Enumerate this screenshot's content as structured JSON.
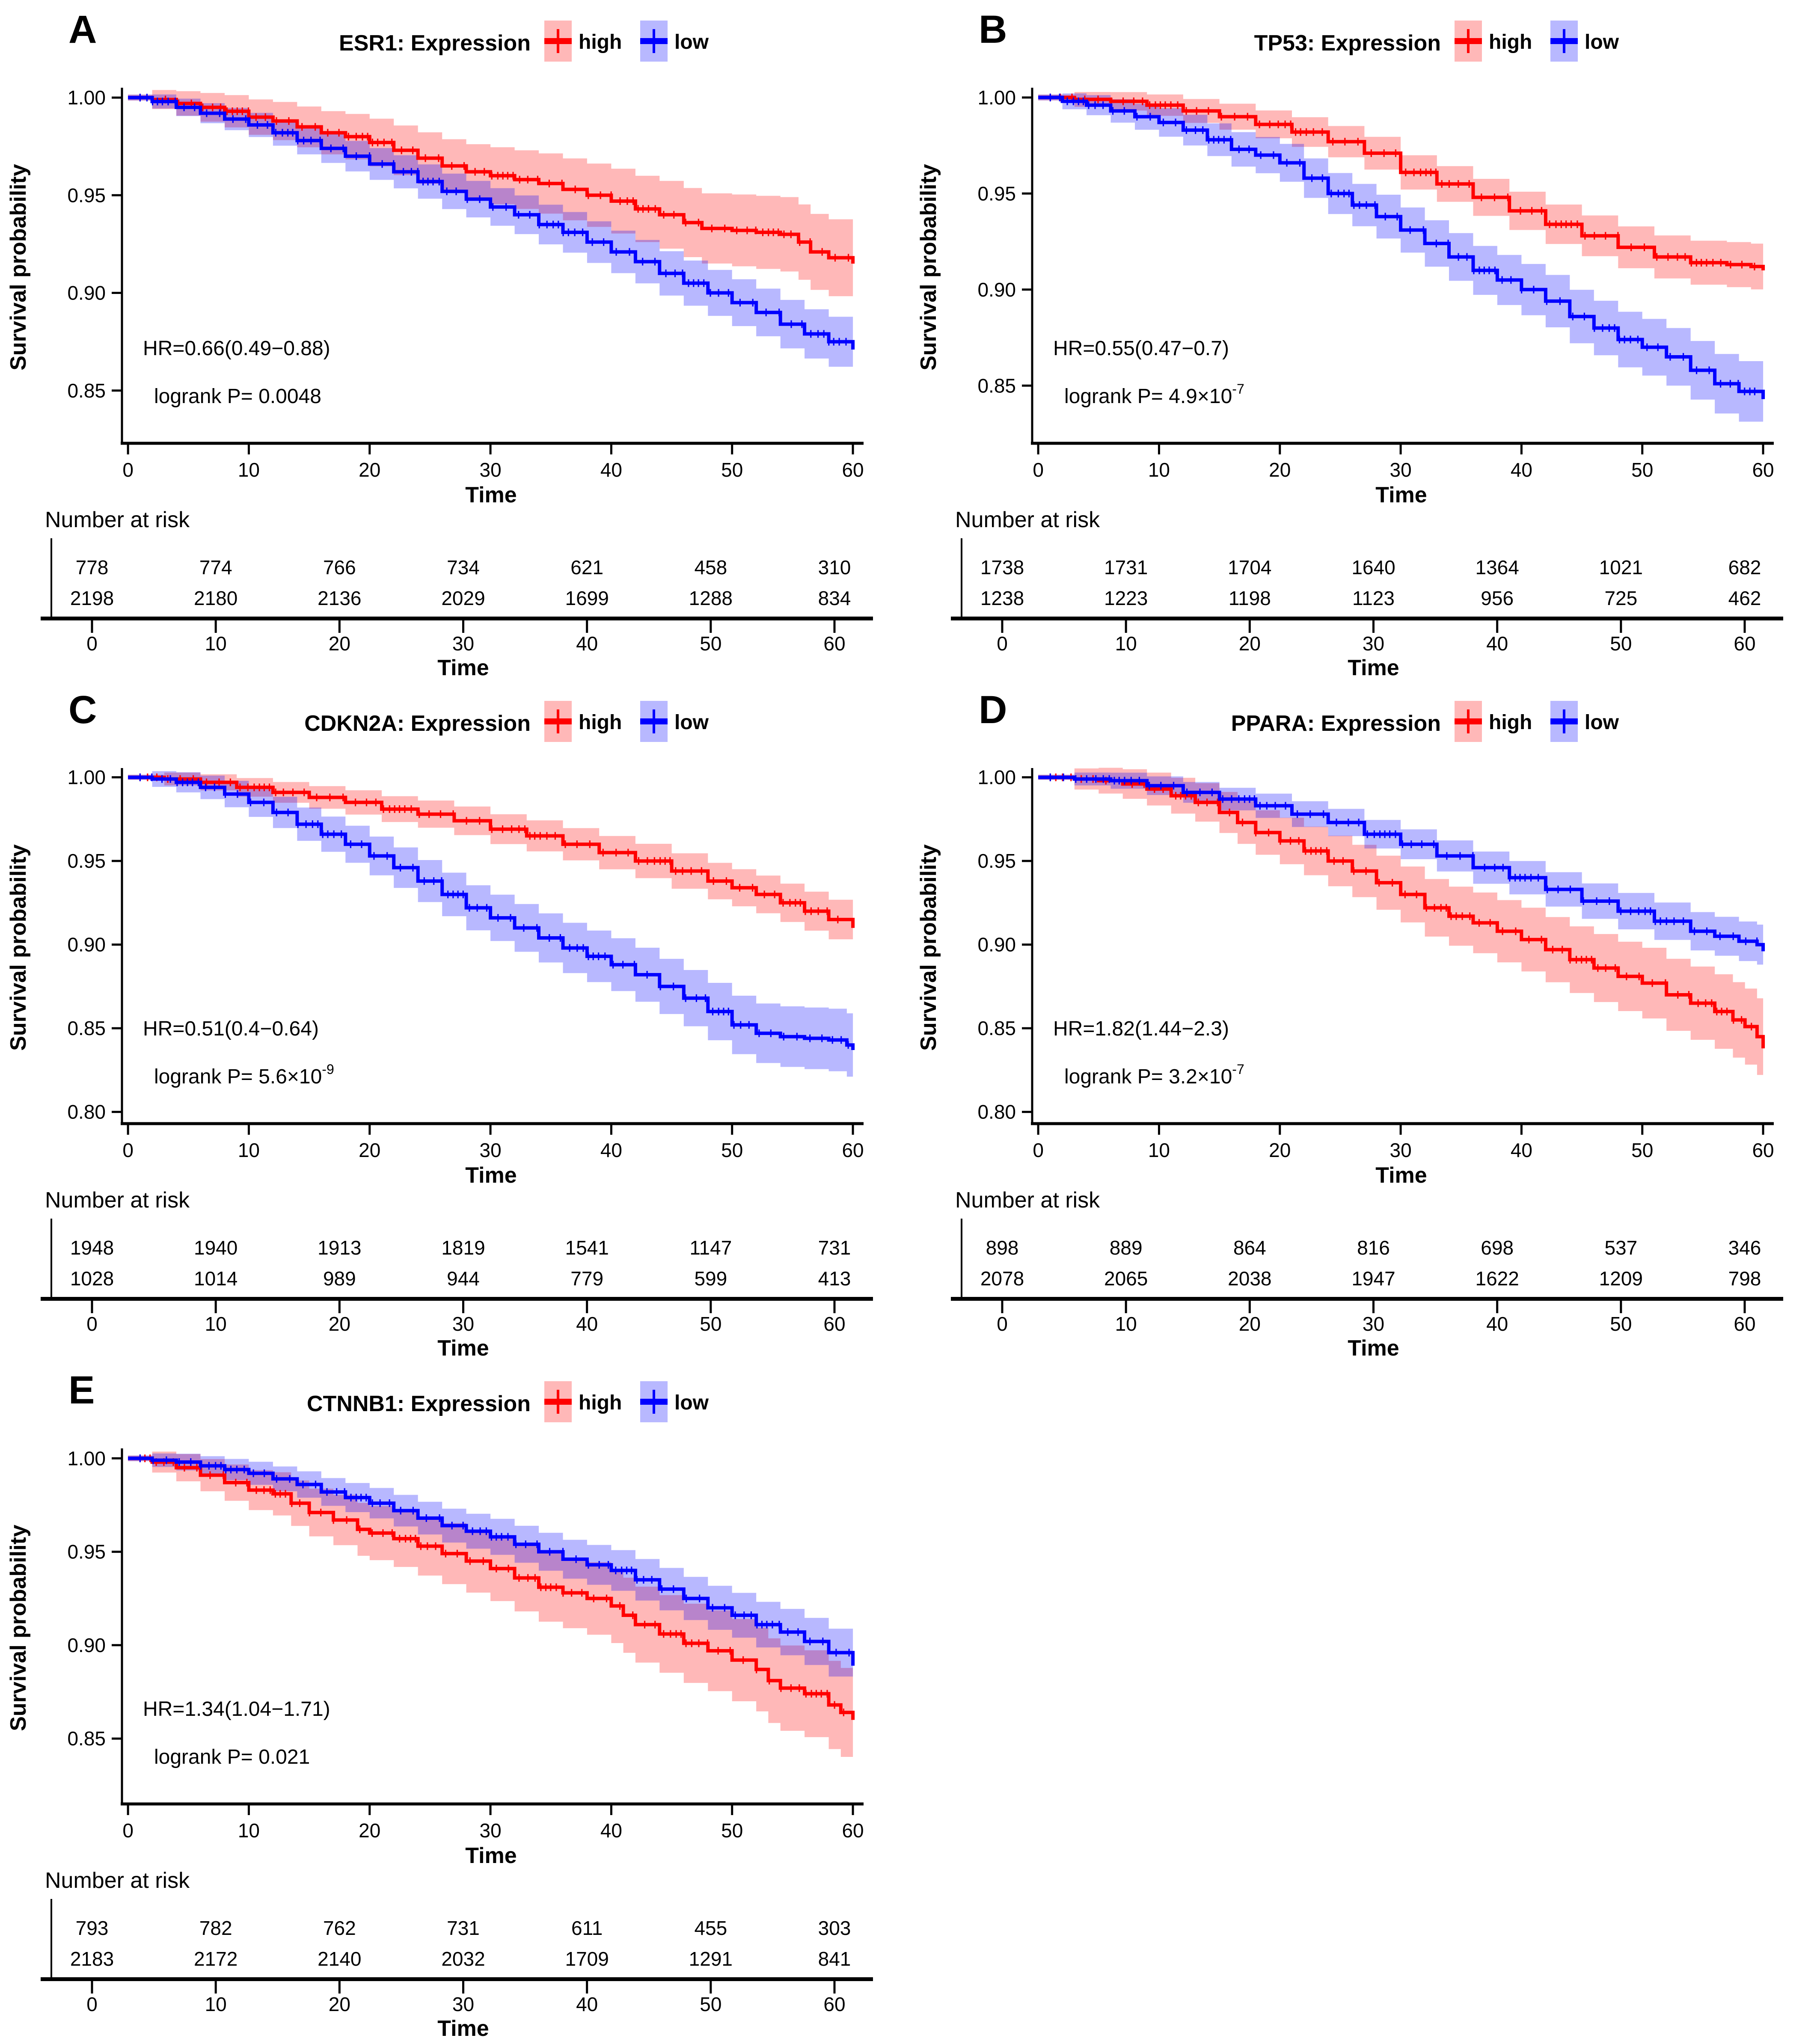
{
  "figure": {
    "number_at_risk_label": "Number at risk",
    "time_axis_label": "Time",
    "y_axis_label": "Survival probability",
    "legend": {
      "high_label": "high",
      "low_label": "low"
    },
    "colors": {
      "high": "#ff0000",
      "low": "#0000ff",
      "band_opacity": 0.28,
      "axis": "#000000"
    }
  },
  "chart_data": [
    {
      "type": "line",
      "panel_letter": "A",
      "title": "ESR1: Expression",
      "hr_label": "HR=0.66(0.49−0.88)",
      "logrank_label": "logrank P= 0.0048",
      "logrank_sup": "",
      "xlabel": "Time",
      "ylabel": "Survival probability",
      "xlim": [
        -0.5,
        60.6
      ],
      "ylim": [
        0.823,
        1.0033
      ],
      "x_ticks": [
        0,
        10,
        20,
        30,
        40,
        50,
        60
      ],
      "y_ticks": [
        {
          "v": 1.0,
          "label": "1.00"
        },
        {
          "v": 0.95,
          "label": "0.95"
        },
        {
          "v": 0.9,
          "label": "0.90"
        },
        {
          "v": 0.85,
          "label": "0.85"
        }
      ],
      "legend_position": "top",
      "grid": false,
      "series": [
        {
          "name": "high",
          "color": "#ff0000",
          "ci_end": 0.02,
          "x": [
            0,
            2,
            4,
            6,
            8,
            10,
            12,
            14,
            16,
            18,
            20,
            22,
            24,
            26,
            28,
            30,
            32,
            34,
            36,
            38,
            40,
            42,
            44,
            46,
            47.5,
            50,
            52,
            54,
            55.5,
            56.5,
            58,
            60
          ],
          "y": [
            1.0,
            0.999,
            0.997,
            0.995,
            0.993,
            0.99,
            0.988,
            0.985,
            0.982,
            0.98,
            0.977,
            0.973,
            0.969,
            0.965,
            0.962,
            0.96,
            0.958,
            0.956,
            0.953,
            0.95,
            0.947,
            0.943,
            0.94,
            0.936,
            0.933,
            0.932,
            0.931,
            0.93,
            0.926,
            0.921,
            0.918,
            0.915
          ],
          "number_at_risk": [
            778,
            774,
            766,
            734,
            621,
            458,
            310
          ]
        },
        {
          "name": "low",
          "color": "#0000ff",
          "ci_end": 0.013,
          "x": [
            0,
            2,
            4,
            6,
            8,
            10,
            12,
            14,
            16,
            18,
            20,
            22,
            24,
            26,
            28,
            30,
            32,
            34,
            36,
            38,
            40,
            42,
            44,
            46,
            48,
            50,
            52,
            54,
            56,
            58,
            60
          ],
          "y": [
            1.0,
            0.998,
            0.995,
            0.992,
            0.989,
            0.986,
            0.982,
            0.978,
            0.974,
            0.97,
            0.966,
            0.962,
            0.957,
            0.952,
            0.948,
            0.944,
            0.94,
            0.935,
            0.931,
            0.926,
            0.921,
            0.916,
            0.91,
            0.905,
            0.9,
            0.895,
            0.89,
            0.884,
            0.879,
            0.875,
            0.871
          ],
          "number_at_risk": [
            2198,
            2180,
            2136,
            2029,
            1699,
            1288,
            834
          ]
        }
      ]
    },
    {
      "type": "line",
      "panel_letter": "B",
      "title": "TP53: Expression",
      "hr_label": "HR=0.55(0.47−0.7)",
      "logrank_label": "logrank P= 4.9×10",
      "logrank_sup": "-7",
      "xlabel": "Time",
      "ylabel": "Survival probability",
      "xlim": [
        -0.5,
        60.6
      ],
      "ylim": [
        0.82,
        1.0033
      ],
      "x_ticks": [
        0,
        10,
        20,
        30,
        40,
        50,
        60
      ],
      "y_ticks": [
        {
          "v": 1.0,
          "label": "1.00"
        },
        {
          "v": 0.95,
          "label": "0.95"
        },
        {
          "v": 0.9,
          "label": "0.90"
        },
        {
          "v": 0.85,
          "label": "0.85"
        }
      ],
      "legend_position": "top",
      "grid": false,
      "series": [
        {
          "name": "high",
          "color": "#ff0000",
          "ci_end": 0.012,
          "x": [
            0,
            3,
            6,
            9,
            12,
            15,
            18,
            21,
            24,
            27,
            30,
            33,
            36,
            39,
            42,
            45,
            48,
            51,
            54,
            57,
            59,
            60
          ],
          "y": [
            1.0,
            0.999,
            0.998,
            0.996,
            0.993,
            0.99,
            0.986,
            0.982,
            0.977,
            0.971,
            0.961,
            0.955,
            0.948,
            0.941,
            0.934,
            0.928,
            0.922,
            0.917,
            0.914,
            0.913,
            0.912,
            0.91
          ],
          "number_at_risk": [
            1738,
            1731,
            1704,
            1640,
            1364,
            1021,
            682
          ]
        },
        {
          "name": "low",
          "color": "#0000ff",
          "ci_end": 0.016,
          "x": [
            0,
            2,
            4,
            6,
            8,
            10,
            12,
            14,
            16,
            18,
            20,
            22,
            24,
            26,
            28,
            30,
            32,
            34,
            36,
            38,
            40,
            42,
            44,
            46,
            48,
            50,
            52,
            54,
            56,
            58,
            60
          ],
          "y": [
            1.0,
            0.998,
            0.996,
            0.993,
            0.99,
            0.987,
            0.983,
            0.978,
            0.973,
            0.97,
            0.966,
            0.958,
            0.95,
            0.944,
            0.938,
            0.931,
            0.924,
            0.917,
            0.91,
            0.905,
            0.9,
            0.894,
            0.886,
            0.88,
            0.874,
            0.87,
            0.865,
            0.858,
            0.851,
            0.847,
            0.843
          ],
          "number_at_risk": [
            1238,
            1223,
            1198,
            1123,
            956,
            725,
            462
          ]
        }
      ]
    },
    {
      "type": "line",
      "panel_letter": "C",
      "title": "CDKN2A: Expression",
      "hr_label": "HR=0.51(0.4−0.64)",
      "logrank_label": "logrank P= 5.6×10",
      "logrank_sup": "-9",
      "xlabel": "Time",
      "ylabel": "Survival probability",
      "xlim": [
        -0.5,
        60.6
      ],
      "ylim": [
        0.793,
        1.0035
      ],
      "x_ticks": [
        0,
        10,
        20,
        30,
        40,
        50,
        60
      ],
      "y_ticks": [
        {
          "v": 1.0,
          "label": "1.00"
        },
        {
          "v": 0.95,
          "label": "0.95"
        },
        {
          "v": 0.9,
          "label": "0.90"
        },
        {
          "v": 0.85,
          "label": "0.85"
        },
        {
          "v": 0.8,
          "label": "0.80"
        }
      ],
      "legend_position": "top",
      "grid": false,
      "series": [
        {
          "name": "high",
          "color": "#ff0000",
          "ci_end": 0.012,
          "x": [
            0,
            3,
            6,
            9,
            12,
            15,
            18,
            21,
            24,
            27,
            30,
            33,
            36,
            39,
            42,
            45,
            48,
            50,
            52,
            54,
            56,
            58,
            60
          ],
          "y": [
            1.0,
            0.999,
            0.997,
            0.994,
            0.991,
            0.988,
            0.985,
            0.981,
            0.978,
            0.974,
            0.969,
            0.965,
            0.96,
            0.955,
            0.95,
            0.944,
            0.938,
            0.934,
            0.93,
            0.925,
            0.92,
            0.915,
            0.91
          ],
          "number_at_risk": [
            1948,
            1940,
            1913,
            1819,
            1541,
            1147,
            731
          ]
        },
        {
          "name": "low",
          "color": "#0000ff",
          "ci_end": 0.019,
          "x": [
            0,
            2,
            4,
            6,
            8,
            10,
            12,
            14,
            16,
            18,
            20,
            22,
            24,
            26,
            28,
            30,
            32,
            34,
            36,
            38,
            40,
            42,
            44,
            46,
            48,
            50,
            52,
            54,
            56,
            58,
            59.5,
            60
          ],
          "y": [
            1.0,
            0.999,
            0.997,
            0.994,
            0.99,
            0.985,
            0.979,
            0.972,
            0.966,
            0.96,
            0.953,
            0.946,
            0.938,
            0.93,
            0.922,
            0.916,
            0.91,
            0.904,
            0.898,
            0.893,
            0.888,
            0.882,
            0.875,
            0.868,
            0.86,
            0.852,
            0.847,
            0.845,
            0.844,
            0.843,
            0.84,
            0.837
          ],
          "number_at_risk": [
            1028,
            1014,
            989,
            944,
            779,
            599,
            413
          ]
        }
      ]
    },
    {
      "type": "line",
      "panel_letter": "D",
      "title": "PPARA: Expression",
      "hr_label": "HR=1.82(1.44−2.3)",
      "logrank_label": "logrank P= 3.2×10",
      "logrank_sup": "-7",
      "xlabel": "Time",
      "ylabel": "Survival probability",
      "xlim": [
        -0.5,
        60.6
      ],
      "ylim": [
        0.793,
        1.0035
      ],
      "x_ticks": [
        0,
        10,
        20,
        30,
        40,
        50,
        60
      ],
      "y_ticks": [
        {
          "v": 1.0,
          "label": "1.00"
        },
        {
          "v": 0.95,
          "label": "0.95"
        },
        {
          "v": 0.9,
          "label": "0.90"
        },
        {
          "v": 0.85,
          "label": "0.85"
        },
        {
          "v": 0.8,
          "label": "0.80"
        }
      ],
      "legend_position": "top",
      "grid": false,
      "series": [
        {
          "name": "high",
          "color": "#ff0000",
          "ci_end": 0.023,
          "x": [
            0,
            3,
            5,
            7,
            9,
            11,
            13,
            15,
            16.5,
            18,
            20,
            22,
            24,
            26,
            28,
            30,
            32,
            34,
            36,
            38,
            40,
            42,
            44,
            46,
            48,
            50,
            52,
            54,
            56,
            57.5,
            58.5,
            59.5,
            60
          ],
          "y": [
            1.0,
            0.999,
            0.998,
            0.996,
            0.993,
            0.989,
            0.985,
            0.979,
            0.973,
            0.967,
            0.962,
            0.956,
            0.95,
            0.944,
            0.937,
            0.93,
            0.922,
            0.917,
            0.913,
            0.908,
            0.903,
            0.897,
            0.891,
            0.886,
            0.881,
            0.877,
            0.87,
            0.865,
            0.86,
            0.855,
            0.851,
            0.845,
            0.838
          ],
          "number_at_risk": [
            898,
            889,
            864,
            816,
            698,
            537,
            346
          ]
        },
        {
          "name": "low",
          "color": "#0000ff",
          "ci_end": 0.012,
          "x": [
            0,
            3,
            6,
            9,
            12,
            15,
            18,
            21,
            24,
            27,
            30,
            33,
            36,
            39,
            42,
            45,
            48,
            51,
            54,
            56,
            58,
            59.5,
            60
          ],
          "y": [
            1.0,
            0.999,
            0.998,
            0.995,
            0.991,
            0.987,
            0.983,
            0.978,
            0.973,
            0.966,
            0.96,
            0.953,
            0.946,
            0.94,
            0.933,
            0.926,
            0.92,
            0.914,
            0.908,
            0.905,
            0.902,
            0.9,
            0.896
          ],
          "number_at_risk": [
            2078,
            2065,
            2038,
            1947,
            1622,
            1209,
            798
          ]
        }
      ]
    },
    {
      "type": "line",
      "panel_letter": "E",
      "title": "CTNNB1: Expression",
      "hr_label": "HR=1.34(1.04−1.71)",
      "logrank_label": "logrank P= 0.021",
      "logrank_sup": "",
      "xlabel": "Time",
      "ylabel": "Survival probability",
      "xlim": [
        -0.5,
        60.6
      ],
      "ylim": [
        0.815,
        1.0035
      ],
      "x_ticks": [
        0,
        10,
        20,
        30,
        40,
        50,
        60
      ],
      "y_ticks": [
        {
          "v": 1.0,
          "label": "1.00"
        },
        {
          "v": 0.95,
          "label": "0.95"
        },
        {
          "v": 0.9,
          "label": "0.90"
        },
        {
          "v": 0.85,
          "label": "0.85"
        }
      ],
      "legend_position": "top",
      "grid": false,
      "series": [
        {
          "name": "high",
          "color": "#ff0000",
          "ci_end": 0.024,
          "x": [
            0,
            2,
            4,
            6,
            8,
            10,
            12,
            13.5,
            15,
            17,
            19,
            20,
            22,
            24,
            26,
            28,
            30,
            32,
            34,
            36,
            38,
            40,
            41,
            42,
            44,
            46,
            48,
            50,
            52,
            53,
            54,
            56,
            58,
            59,
            60
          ],
          "y": [
            1.0,
            0.998,
            0.995,
            0.991,
            0.987,
            0.983,
            0.981,
            0.976,
            0.971,
            0.967,
            0.962,
            0.96,
            0.957,
            0.953,
            0.949,
            0.945,
            0.941,
            0.936,
            0.931,
            0.928,
            0.925,
            0.921,
            0.916,
            0.911,
            0.906,
            0.901,
            0.897,
            0.892,
            0.887,
            0.881,
            0.877,
            0.874,
            0.868,
            0.864,
            0.86
          ],
          "number_at_risk": [
            793,
            782,
            762,
            731,
            611,
            455,
            303
          ]
        },
        {
          "name": "low",
          "color": "#0000ff",
          "ci_end": 0.013,
          "x": [
            0,
            2,
            4,
            6,
            8,
            10,
            12,
            14,
            16,
            18,
            20,
            22,
            24,
            26,
            28,
            30,
            32,
            34,
            36,
            38,
            40,
            42,
            44,
            46,
            48,
            50,
            52,
            54,
            56,
            58,
            60
          ],
          "y": [
            1.0,
            0.999,
            0.998,
            0.996,
            0.994,
            0.992,
            0.989,
            0.986,
            0.982,
            0.979,
            0.976,
            0.972,
            0.968,
            0.964,
            0.961,
            0.958,
            0.954,
            0.95,
            0.946,
            0.943,
            0.94,
            0.935,
            0.93,
            0.925,
            0.92,
            0.916,
            0.911,
            0.907,
            0.902,
            0.896,
            0.889
          ],
          "number_at_risk": [
            2183,
            2172,
            2140,
            2032,
            1709,
            1291,
            841
          ]
        }
      ]
    }
  ]
}
